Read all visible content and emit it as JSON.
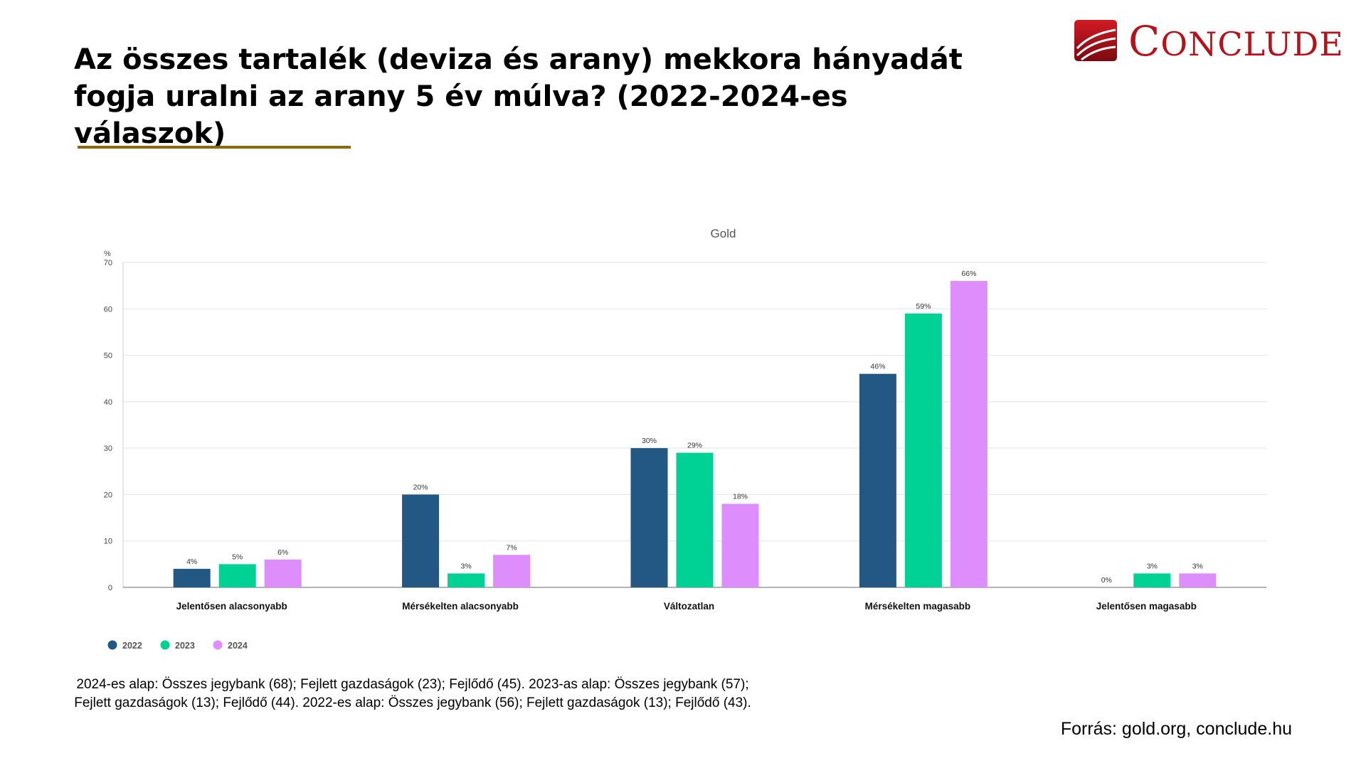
{
  "title": {
    "line1": "Az összes tartalék (deviza és arany) mekkora hányadát",
    "line2": "fogja uralni az arany 5 év múlva? (2022-2024-es válaszok)"
  },
  "logo": {
    "text_big": "C",
    "text_rest": "ONCLUDE",
    "color": "#b5121b",
    "icon": "conclude-logo-icon"
  },
  "accent_color": "#8a6a0c",
  "chart_data": {
    "type": "bar",
    "title": "Gold",
    "ylabel": "%",
    "xlabel": "",
    "ylim": [
      0,
      70
    ],
    "yticks": [
      0,
      10,
      20,
      30,
      40,
      50,
      60,
      70
    ],
    "grid": true,
    "legend_position": "bottom-left",
    "categories": [
      "Jelentősen alacsonyabb",
      "Mérsékelten alacsonyabb",
      "Változatlan",
      "Mérsékelten magasabb",
      "Jelentősen magasabb"
    ],
    "series": [
      {
        "name": "2022",
        "color": "#235885",
        "values": [
          4,
          20,
          30,
          46,
          0
        ],
        "labels": [
          "4%",
          "20%",
          "30%",
          "46%",
          "0%"
        ]
      },
      {
        "name": "2023",
        "color": "#00d195",
        "values": [
          5,
          3,
          29,
          59,
          3
        ],
        "labels": [
          "5%",
          "3%",
          "29%",
          "59%",
          "3%"
        ]
      },
      {
        "name": "2024",
        "color": "#de8efc",
        "values": [
          6,
          7,
          18,
          66,
          3
        ],
        "labels": [
          "6%",
          "7%",
          "18%",
          "66%",
          "3%"
        ]
      }
    ]
  },
  "footnote": {
    "line1": "2024-es alap: Összes jegybank (68); Fejlett gazdaságok (23); Fejlődő (45).  2023-as alap: Összes jegybank (57);",
    "line2": "Fejlett gazdaságok (13); Fejlődő (44).  2022-es alap: Összes jegybank (56); Fejlett gazdaságok (13); Fejlődő (43)."
  },
  "source": "Forrás: gold.org, conclude.hu"
}
